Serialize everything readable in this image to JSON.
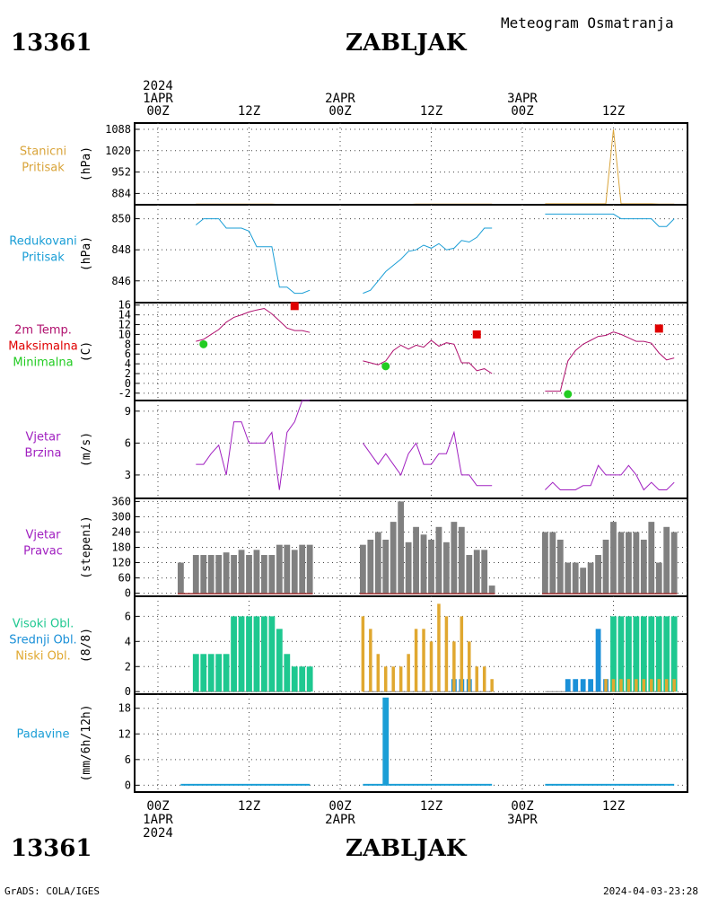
{
  "header": {
    "station_id": "13361",
    "station_name": "ZABLJAK",
    "meteogram_title": "Meteogram Osmatranja"
  },
  "footer": {
    "station_id": "13361",
    "station_name": "ZABLJAK",
    "credit": "GrADS: COLA/IGES",
    "timestamp": "2024-04-03-23:28"
  },
  "time_axis": {
    "top_labels": [
      {
        "hour": 0,
        "lines": [
          "2024",
          "1APR",
          "00Z"
        ]
      },
      {
        "hour": 12,
        "lines": [
          "12Z"
        ]
      },
      {
        "hour": 24,
        "lines": [
          "2APR",
          "00Z"
        ]
      },
      {
        "hour": 36,
        "lines": [
          "12Z"
        ]
      },
      {
        "hour": 48,
        "lines": [
          "3APR",
          "00Z"
        ]
      },
      {
        "hour": 60,
        "lines": [
          "12Z"
        ]
      }
    ],
    "bottom_labels": [
      {
        "hour": 0,
        "lines": [
          "00Z",
          "1APR",
          "2024"
        ]
      },
      {
        "hour": 12,
        "lines": [
          "12Z"
        ]
      },
      {
        "hour": 24,
        "lines": [
          "00Z",
          "2APR"
        ]
      },
      {
        "hour": 36,
        "lines": [
          "12Z"
        ]
      },
      {
        "hour": 48,
        "lines": [
          "00Z",
          "3APR"
        ]
      },
      {
        "hour": 60,
        "lines": [
          "12Z"
        ]
      }
    ]
  },
  "colors": {
    "pressure": "#d9a43a",
    "reduced": "#1a9ed6",
    "temp": "#b0106e",
    "tmax": "#e00000",
    "tmin": "#22cc22",
    "wind": "#a020c0",
    "winddir": "#808080",
    "high_cloud": "#1ec890",
    "mid_cloud": "#1a90d8",
    "low_cloud": "#e0a830",
    "precip": "#1a9ed6"
  },
  "chart_data": [
    {
      "type": "line",
      "panel": "station_pressure",
      "title_lines": [
        "Stanicni",
        "Pritisak"
      ],
      "ylabel": "(hPa)",
      "yticks": [
        884,
        952,
        1020,
        1088
      ],
      "ylim": [
        848,
        1108
      ],
      "series": [
        {
          "segments": [
            {
              "x": [
                5,
                6,
                7,
                8,
                9,
                10,
                11,
                12,
                13,
                14,
                15,
                16,
                17,
                18,
                19,
                20
              ],
              "y": [
                850,
                850,
                850,
                850,
                850,
                850,
                850,
                850,
                850,
                850,
                850,
                849,
                849,
                849,
                849,
                849
              ]
            },
            {
              "x": [
                27,
                28,
                29,
                30,
                31,
                32,
                33,
                34,
                35,
                36,
                37,
                38,
                39,
                40,
                41,
                42,
                43,
                44
              ],
              "y": [
                849,
                849,
                849,
                849,
                849,
                849,
                849,
                850,
                850,
                850,
                850,
                850,
                850,
                850,
                850,
                850,
                850,
                850
              ]
            },
            {
              "x": [
                51,
                52,
                53,
                54,
                55,
                56,
                57,
                58,
                59,
                60,
                61,
                62,
                63,
                64,
                65,
                66,
                67,
                68
              ],
              "y": [
                851,
                851,
                851,
                851,
                851,
                851,
                851,
                851,
                851,
                1088,
                851,
                851,
                851,
                851,
                851,
                850,
                850,
                850
              ]
            }
          ]
        }
      ]
    },
    {
      "type": "line",
      "panel": "reduced_pressure",
      "title_lines": [
        "Redukovani",
        "Pritisak"
      ],
      "ylabel": "(hPa)",
      "yticks": [
        846,
        848,
        850
      ],
      "ylim": [
        844.6,
        850.9
      ],
      "series": [
        {
          "segments": [
            {
              "x": [
                5,
                6,
                7,
                8,
                9,
                10,
                11,
                12,
                13,
                14,
                15,
                16,
                17,
                18,
                19,
                20
              ],
              "y": [
                849.6,
                850,
                850,
                850,
                849.4,
                849.4,
                849.4,
                849.2,
                848.2,
                848.2,
                848.2,
                845.6,
                845.6,
                845.2,
                845.2,
                845.4
              ]
            },
            {
              "x": [
                27,
                28,
                29,
                30,
                31,
                32,
                33,
                34,
                35,
                36,
                37,
                38,
                39,
                40,
                41,
                42,
                43,
                44
              ],
              "y": [
                845.2,
                845.4,
                846,
                846.6,
                847,
                847.4,
                847.9,
                848,
                848.3,
                848.1,
                848.4,
                848,
                848.1,
                848.6,
                848.5,
                848.8,
                849.4,
                849.4
              ]
            },
            {
              "x": [
                51,
                52,
                53,
                54,
                55,
                56,
                57,
                58,
                59,
                60,
                61,
                62,
                63,
                64,
                65,
                66,
                67,
                68
              ],
              "y": [
                850.3,
                850.3,
                850.3,
                850.3,
                850.3,
                850.3,
                850.3,
                850.3,
                850.3,
                850.3,
                850,
                850,
                850,
                850,
                850,
                849.5,
                849.5,
                850
              ]
            }
          ]
        }
      ]
    },
    {
      "type": "line",
      "panel": "temperature",
      "title_lines": [
        "2m Temp.",
        "Maksimalna",
        "Minimalna"
      ],
      "ylabel": "(C)",
      "yticks": [
        -2,
        0,
        2,
        4,
        6,
        8,
        10,
        12,
        14,
        16
      ],
      "ylim": [
        -3.5,
        16.5
      ],
      "series": [
        {
          "segments": [
            {
              "x": [
                5,
                6,
                7,
                8,
                9,
                10,
                11,
                12,
                13,
                14,
                15,
                16,
                17,
                18,
                19,
                20
              ],
              "y": [
                8.6,
                9,
                10,
                11,
                12.5,
                13.5,
                14,
                14.6,
                15,
                15.3,
                14.2,
                12.8,
                11.3,
                10.8,
                10.8,
                10.4
              ]
            },
            {
              "x": [
                27,
                28,
                29,
                30,
                31,
                32,
                33,
                34,
                35,
                36,
                37,
                38,
                39,
                40,
                41,
                42,
                43,
                44
              ],
              "y": [
                4.6,
                4.2,
                3.8,
                4.6,
                6.7,
                7.8,
                7,
                7.8,
                7.4,
                8.8,
                7.6,
                8.3,
                8,
                4.2,
                4.2,
                2.6,
                3,
                2
              ]
            },
            {
              "x": [
                51,
                52,
                53,
                54,
                55,
                56,
                57,
                58,
                59,
                60,
                61,
                62,
                63,
                64,
                65,
                66,
                67,
                68
              ],
              "y": [
                -1.6,
                -1.6,
                -1.6,
                4.6,
                6.7,
                8,
                8.8,
                9.6,
                9.8,
                10.5,
                10,
                9.3,
                8.6,
                8.6,
                8.2,
                6.2,
                4.8,
                5.2
              ]
            }
          ]
        },
        {
          "name": "Maksimalna",
          "marker": "square",
          "x": [
            18,
            42,
            66
          ],
          "y": [
            15.8,
            10,
            11.2
          ]
        },
        {
          "name": "Minimalna",
          "marker": "circle",
          "x": [
            6,
            30,
            54
          ],
          "y": [
            8,
            3.5,
            -2.2
          ]
        }
      ]
    },
    {
      "type": "line",
      "panel": "wind_speed",
      "title_lines": [
        "Vjetar",
        "Brzina"
      ],
      "ylabel": "(m/s)",
      "yticks": [
        3,
        6,
        9
      ],
      "ylim": [
        0.8,
        10
      ],
      "series": [
        {
          "segments": [
            {
              "x": [
                5,
                6,
                7,
                8,
                9,
                10,
                11,
                12,
                13,
                14,
                15,
                16,
                17,
                18,
                19,
                20
              ],
              "y": [
                4,
                4,
                5,
                5.8,
                3,
                8,
                8,
                6,
                6,
                6,
                7,
                1.6,
                7,
                8,
                10,
                10
              ]
            },
            {
              "x": [
                27,
                28,
                29,
                30,
                31,
                32,
                33,
                34,
                35,
                36,
                37,
                38,
                39,
                40,
                41,
                42,
                43,
                44
              ],
              "y": [
                6,
                5,
                4,
                5,
                4,
                3,
                5,
                6,
                4,
                4,
                5,
                5,
                7,
                3,
                3,
                2,
                2,
                2
              ]
            },
            {
              "x": [
                51,
                52,
                53,
                54,
                55,
                56,
                57,
                58,
                59,
                60,
                61,
                62,
                63,
                64,
                65,
                66,
                67,
                68
              ],
              "y": [
                1.6,
                2.3,
                1.6,
                1.6,
                1.6,
                2,
                2,
                3.9,
                3,
                3,
                3,
                3.9,
                3,
                1.6,
                2.3,
                1.6,
                1.6,
                2.3
              ]
            }
          ]
        }
      ]
    },
    {
      "type": "bar",
      "panel": "wind_direction",
      "title_lines": [
        "Vjetar",
        "Pravac"
      ],
      "ylabel": "(stepeni)",
      "yticks": [
        0,
        60,
        120,
        180,
        240,
        300,
        360
      ],
      "ylim": [
        -12,
        372
      ],
      "series": [
        {
          "segments": [
            {
              "x": [
                3,
                5,
                6,
                7,
                8,
                9,
                10,
                11,
                12,
                13,
                14,
                15,
                16,
                17,
                18,
                19,
                20
              ],
              "y": [
                120,
                150,
                150,
                150,
                150,
                160,
                150,
                170,
                150,
                170,
                150,
                150,
                190,
                190,
                170,
                190,
                190
              ]
            },
            {
              "x": [
                27,
                28,
                29,
                30,
                31,
                32,
                33,
                34,
                35,
                36,
                37,
                38,
                39,
                40,
                41,
                42,
                43,
                44
              ],
              "y": [
                190,
                210,
                240,
                210,
                280,
                360,
                200,
                260,
                230,
                210,
                260,
                200,
                280,
                260,
                150,
                170,
                170,
                30
              ]
            },
            {
              "x": [
                51,
                52,
                53,
                54,
                55,
                56,
                57,
                58,
                59,
                60,
                61,
                62,
                63,
                64,
                65,
                66,
                67,
                68
              ],
              "y": [
                240,
                240,
                210,
                120,
                120,
                100,
                120,
                150,
                210,
                280,
                240,
                240,
                240,
                210,
                280,
                120,
                260,
                240
              ]
            }
          ]
        }
      ]
    },
    {
      "type": "bar",
      "panel": "clouds",
      "title_lines": [
        "Visoki Obl.",
        "Srednji Obl.",
        "Niski Obl."
      ],
      "ylabel": "(8/8)",
      "yticks": [
        0,
        2,
        4,
        6
      ],
      "ylim": [
        -0.2,
        7.6
      ],
      "series": [
        {
          "name": "Visoki Obl.",
          "x": [
            5,
            6,
            7,
            8,
            9,
            10,
            11,
            12,
            13,
            14,
            15,
            16,
            17,
            18,
            19,
            20,
            57,
            58,
            59,
            60,
            61,
            62,
            63,
            64,
            65,
            66,
            67,
            68
          ],
          "y": [
            3,
            3,
            3,
            3,
            3,
            6,
            6,
            6,
            6,
            6,
            6,
            5,
            3,
            2,
            2,
            2,
            0,
            0,
            0,
            6,
            6,
            6,
            6,
            6,
            6,
            6,
            6,
            6
          ]
        },
        {
          "name": "Srednji Obl.",
          "x": [
            39,
            40,
            41,
            54,
            55,
            56,
            57,
            58,
            59
          ],
          "y": [
            1,
            1,
            1,
            1,
            1,
            1,
            1,
            5,
            1
          ]
        },
        {
          "name": "Niski Obl.",
          "x": [
            27,
            28,
            29,
            30,
            31,
            32,
            33,
            34,
            35,
            36,
            37,
            38,
            39,
            40,
            41,
            42,
            43,
            44,
            59,
            60,
            61,
            62,
            63,
            64,
            65,
            66,
            67,
            68
          ],
          "y": [
            6,
            5,
            3,
            2,
            2,
            2,
            3,
            5,
            5,
            4,
            7,
            6,
            4,
            6,
            4,
            2,
            2,
            1,
            1,
            1,
            1,
            1,
            1,
            1,
            1,
            1,
            1,
            1
          ]
        }
      ]
    },
    {
      "type": "bar",
      "panel": "precipitation",
      "title_lines": [
        "Padavine"
      ],
      "ylabel": "(mm/6h/12h)",
      "yticks": [
        0,
        6,
        12,
        18
      ],
      "ylim": [
        -1.6,
        21.3
      ],
      "series": [
        {
          "x": [
            30
          ],
          "y": [
            20.5
          ]
        }
      ]
    }
  ]
}
